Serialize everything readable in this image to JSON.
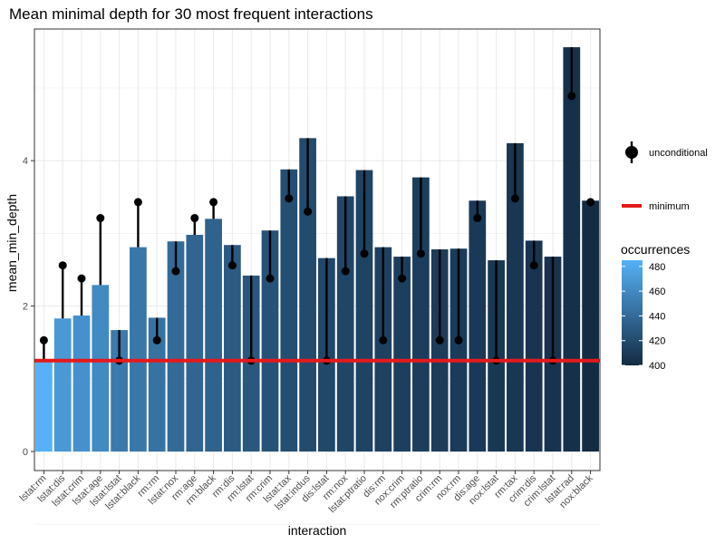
{
  "chart_data": {
    "type": "bar",
    "title": "Mean minimal depth for 30 most frequent interactions",
    "xlabel": "interaction",
    "ylabel": "mean_min_depth",
    "ylim": [
      -0.3,
      5.8
    ],
    "yticks": [
      0,
      2,
      4
    ],
    "grid": true,
    "categories": [
      "lstat:rm",
      "lstat:dis",
      "lstat:crim",
      "lstat:age",
      "lstat:lstat",
      "lstat:black",
      "rm:rm",
      "lstat:nox",
      "rm:age",
      "rm:black",
      "rm:dis",
      "rm:lstat",
      "rm:crim",
      "lstat:tax",
      "lstat:indus",
      "dis:lstat",
      "rm:nox",
      "lstat:ptratio",
      "dis:rm",
      "nox:crim",
      "rm:ptratio",
      "crim:rm",
      "nox:rm",
      "dis:age",
      "nox:lstat",
      "rm:tax",
      "crim:dis",
      "crim:lstat",
      "lstat:rad",
      "nox:black"
    ],
    "series": [
      {
        "name": "mean_min_depth",
        "values": [
          1.25,
          1.83,
          1.87,
          2.29,
          1.67,
          2.81,
          1.84,
          2.89,
          2.98,
          3.2,
          2.84,
          2.42,
          3.04,
          3.88,
          4.31,
          2.66,
          3.51,
          3.87,
          2.81,
          2.68,
          3.77,
          2.78,
          2.79,
          3.45,
          2.63,
          4.24,
          2.9,
          2.68,
          5.56,
          3.45
        ]
      },
      {
        "name": "unconditional",
        "values": [
          1.53,
          2.56,
          2.38,
          3.21,
          1.25,
          3.43,
          1.53,
          2.48,
          3.21,
          3.43,
          2.56,
          1.25,
          2.38,
          3.48,
          3.3,
          1.25,
          2.48,
          2.72,
          1.53,
          2.38,
          2.72,
          1.53,
          1.53,
          3.21,
          1.25,
          3.48,
          2.56,
          1.25,
          4.89,
          3.43
        ]
      },
      {
        "name": "occurrences",
        "values": [
          485,
          470,
          465,
          460,
          450,
          448,
          445,
          440,
          437,
          435,
          430,
          428,
          425,
          422,
          420,
          418,
          417,
          415,
          414,
          413,
          412,
          411,
          410,
          409,
          408,
          407,
          406,
          405,
          403,
          400
        ]
      }
    ],
    "minimum": 1.25,
    "legend": {
      "position": "right",
      "unconditional_label": "unconditional",
      "minimum_label": "minimum",
      "occurrences_title": "occurrences",
      "occurrences_ticks": [
        400,
        420,
        440,
        460,
        480
      ],
      "occurrences_range": [
        400,
        485
      ]
    },
    "colors": {
      "bar_low": "#132B43",
      "bar_high": "#56B1F7",
      "minimum_line": "#e31a1c",
      "point": "#000000",
      "grid": "#ebebeb",
      "panel_border": "#333333"
    }
  }
}
